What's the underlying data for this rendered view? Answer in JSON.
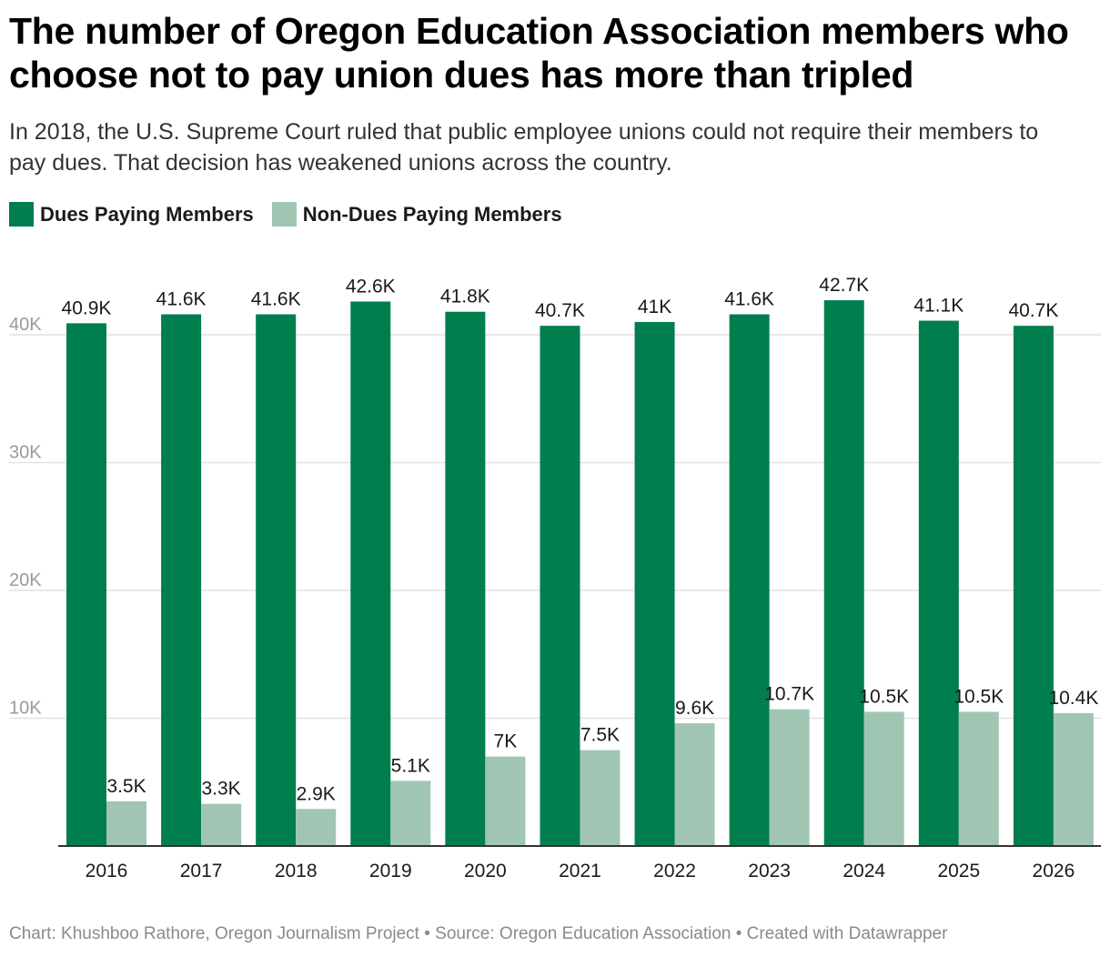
{
  "title": "The number of Oregon Education Association members who choose not to pay union dues has more than tripled",
  "subtitle": "In 2018, the U.S. Supreme Court ruled that public employee unions could not require their members to pay dues. That decision has weakened unions across the country.",
  "footer": "Chart: Khushboo Rathore, Oregon Journalism Project • Source: Oregon Education Association • Created with Datawrapper",
  "colors": {
    "dues": "#007e4e",
    "non_dues": "#a0c6b3",
    "grid": "#e2e2e2",
    "axis": "#333333"
  },
  "chart_data": {
    "type": "bar",
    "title": "The number of Oregon Education Association members who choose not to pay union dues has more than tripled",
    "xlabel": "",
    "ylabel": "",
    "ylim": [
      0,
      45000
    ],
    "grid": true,
    "legend_position": "top-left",
    "categories": [
      "2016",
      "2017",
      "2018",
      "2019",
      "2020",
      "2021",
      "2022",
      "2023",
      "2024",
      "2025",
      "2026"
    ],
    "yticks": [
      {
        "value": 10000,
        "label": "10K"
      },
      {
        "value": 20000,
        "label": "20K"
      },
      {
        "value": 30000,
        "label": "30K"
      },
      {
        "value": 40000,
        "label": "40K"
      }
    ],
    "series": [
      {
        "name": "Dues Paying Members",
        "values": [
          40900,
          41600,
          41600,
          42600,
          41800,
          40700,
          41000,
          41600,
          42700,
          41100,
          40700
        ],
        "labels": [
          "40.9K",
          "41.6K",
          "41.6K",
          "42.6K",
          "41.8K",
          "40.7K",
          "41K",
          "41.6K",
          "42.7K",
          "41.1K",
          "40.7K"
        ]
      },
      {
        "name": "Non-Dues Paying Members",
        "values": [
          3500,
          3300,
          2900,
          5100,
          7000,
          7500,
          9600,
          10700,
          10500,
          10500,
          10400
        ],
        "labels": [
          "3.5K",
          "3.3K",
          "2.9K",
          "5.1K",
          "7K",
          "7.5K",
          "9.6K",
          "10.7K",
          "10.5K",
          "10.5K",
          "10.4K"
        ]
      }
    ]
  }
}
